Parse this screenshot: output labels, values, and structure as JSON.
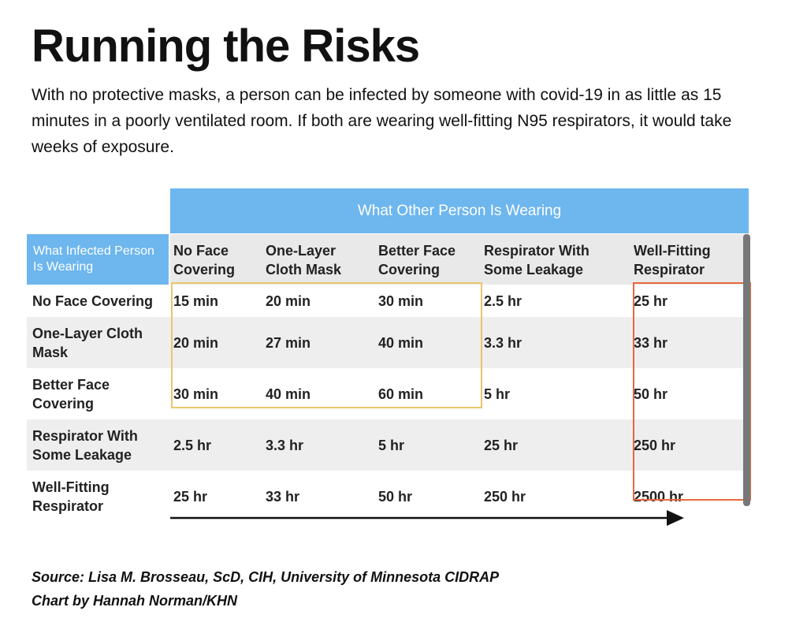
{
  "title": "Running the Risks",
  "subtitle": "With no protective masks, a person can be infected by someone with covid-19 in as little as 15 minutes in a poorly ventilated room. If both are wearing well-fitting N95 respirators, it would take weeks of exposure.",
  "colors": {
    "header_blue": "#6db6ee",
    "band_gray": "#eeeeee",
    "header_gray": "#e9e9e9",
    "highlight_yellow": "#ecc56a",
    "highlight_orange": "#e8683e",
    "scrollbar_gray": "#777777",
    "arrow_black": "#111111"
  },
  "chart_data": {
    "type": "table",
    "column_group_label": "What Other Person Is Wearing",
    "row_header_label": "What Infected Person\nIs Wearing",
    "columns": [
      "No Face\nCovering",
      "One-Layer\nCloth Mask",
      "Better Face\nCovering",
      "Respirator With\nSome Leakage",
      "Well-Fitting\nRespirator"
    ],
    "rows": [
      {
        "label": "No Face Covering",
        "values": [
          "15 min",
          "20 min",
          "30 min",
          "2.5 hr",
          "25 hr"
        ]
      },
      {
        "label": "One-Layer Cloth\nMask",
        "values": [
          "20 min",
          "27 min",
          "40 min",
          "3.3 hr",
          "33 hr"
        ]
      },
      {
        "label": "Better Face\nCovering",
        "values": [
          "30 min",
          "40 min",
          "60 min",
          "5 hr",
          "50 hr"
        ]
      },
      {
        "label": "Respirator With\nSome Leakage",
        "values": [
          "2.5 hr",
          "3.3 hr",
          "5 hr",
          "25 hr",
          "250 hr"
        ]
      },
      {
        "label": "Well-Fitting\nRespirator",
        "values": [
          "25 hr",
          "33 hr",
          "50 hr",
          "250 hr",
          "2500 hr"
        ]
      }
    ]
  },
  "source": {
    "line1": "Source: Lisa M. Brosseau, ScD, CIH, University of Minnesota CIDRAP",
    "line2": "Chart by Hannah Norman/KHN"
  }
}
